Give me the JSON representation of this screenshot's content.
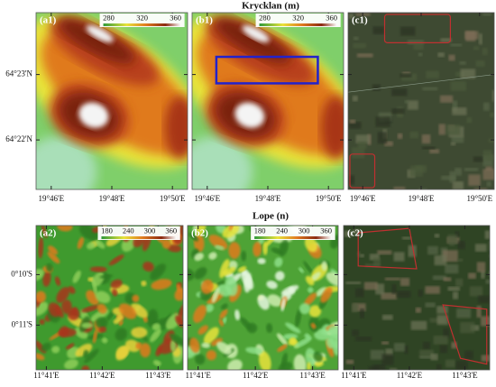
{
  "figure": {
    "rows": [
      {
        "title": "Krycklan (m)",
        "y_labels": [
          "64°23'N",
          "64°22'N"
        ],
        "x_labels": [
          "19°46'E",
          "19°48'E",
          "19°50'E"
        ],
        "panels": [
          {
            "label": "(a1)",
            "colorbar_ticks": [
              280,
              320,
              360
            ]
          },
          {
            "label": "(b1)",
            "colorbar_ticks": [
              280,
              320,
              360
            ]
          },
          {
            "label": "(c1)"
          }
        ]
      },
      {
        "title": "Lope (n)",
        "y_labels": [
          "0°10'S",
          "0°11'S"
        ],
        "x_labels": [
          "11°41'E",
          "11°42'E",
          "11°43'E"
        ],
        "panels": [
          {
            "label": "(a2)",
            "colorbar_ticks": [
              180,
              240,
              300,
              360
            ]
          },
          {
            "label": "(b2)",
            "colorbar_ticks": [
              180,
              240,
              300,
              360
            ]
          },
          {
            "label": "(c2)"
          }
        ]
      }
    ]
  }
}
